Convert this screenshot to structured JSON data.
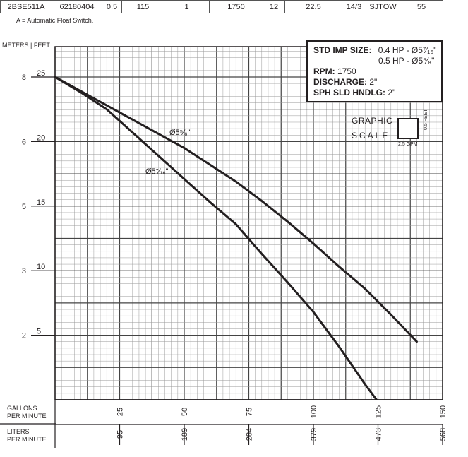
{
  "spec_table": {
    "cells": [
      "2BSE511A",
      "62180404",
      "0.5",
      "115",
      "1",
      "1750",
      "12",
      "22.5",
      "14/3",
      "SJTOW",
      "55"
    ]
  },
  "footnote": "A = Automatic Float Switch.",
  "axes": {
    "units_header": "METERS | FEET",
    "y_feet_ticks": [
      "5",
      "10",
      "15",
      "20",
      "25"
    ],
    "y_meter_ticks": [
      "2",
      "3",
      "5",
      "6",
      "8"
    ],
    "x_gpm_ticks": [
      "25",
      "50",
      "75",
      "100",
      "125",
      "150"
    ],
    "x_lpm_ticks": [
      "95",
      "189",
      "284",
      "379",
      "473",
      "568"
    ],
    "x_gpm_label_line1": "GALLONS",
    "x_gpm_label_line2": "PER MINUTE",
    "x_lpm_label_line1": "LITERS",
    "x_lpm_label_line2": "PER MINUTE"
  },
  "info_box": {
    "std_imp_label": "STD IMP SIZE:",
    "std_imp_value1": "0.4 HP - Ø5⁷⁄₁₆\"",
    "std_imp_value2": "0.5 HP - Ø5⁵⁄₈\"",
    "rpm_label": "RPM:",
    "rpm_value": "1750",
    "discharge_label": "DISCHARGE:",
    "discharge_value": "2\"",
    "sph_label": "SPH SLD HNDLG:",
    "sph_value": "2\""
  },
  "graphic_scale": {
    "title": "GRAPHIC",
    "scale": "SCALE",
    "feet": "0.5 FEET",
    "gpm": "2.5 GPM"
  },
  "chart_data": {
    "type": "line",
    "xlabel": "GALLONS PER MINUTE",
    "ylabel": "FEET",
    "xlim": [
      0,
      150
    ],
    "ylim": [
      0,
      25
    ],
    "grid": true,
    "series": [
      {
        "name": "Ø5⁵⁄₈\"",
        "x": [
          0,
          10,
          20,
          30,
          40,
          50,
          60,
          70,
          80,
          90,
          100,
          110,
          120,
          130,
          140
        ],
        "y": [
          25,
          23.9,
          22.8,
          21.7,
          20.6,
          19.5,
          18.2,
          16.9,
          15.4,
          13.8,
          12.1,
          10.3,
          8.6,
          6.6,
          4.5
        ]
      },
      {
        "name": "Ø5⁷⁄₁₆\"",
        "x": [
          0,
          10,
          20,
          30,
          40,
          50,
          60,
          70,
          80,
          90,
          100,
          110,
          120,
          130
        ],
        "y": [
          25,
          23.8,
          22.5,
          20.7,
          18.9,
          17.1,
          15.3,
          13.6,
          11.3,
          9.1,
          6.8,
          4.1,
          1.2,
          -1.5
        ]
      }
    ]
  }
}
